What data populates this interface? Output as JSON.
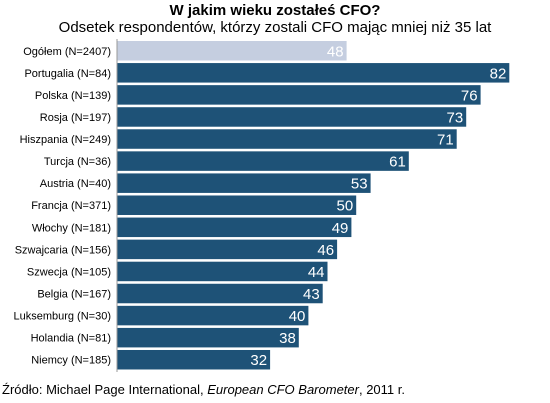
{
  "chart_data": {
    "type": "bar",
    "orientation": "horizontal",
    "title": "W jakim wieku zostałeś CFO?",
    "subtitle": "Odsetek respondentów, którzy zostali CFO mając mniej niż 35 lat",
    "categories": [
      "Ogółem (N=2407)",
      "Portugalia (N=84)",
      "Polska (N=139)",
      "Rosja (N=197)",
      "Hiszpania (N=249)",
      "Turcja (N=36)",
      "Austria (N=40)",
      "Francja (N=371)",
      "Włochy (N=181)",
      "Szwajcaria (N=156)",
      "Szwecja (N=105)",
      "Belgia (N=167)",
      "Luksemburg (N=30)",
      "Holandia (N=81)",
      "Niemcy (N=185)"
    ],
    "values": [
      48,
      82,
      76,
      73,
      71,
      61,
      53,
      50,
      49,
      46,
      44,
      43,
      40,
      38,
      32
    ],
    "highlight_index": 0,
    "xlim": [
      0,
      88
    ],
    "grid": false,
    "colors": {
      "bar": "#1e5277",
      "highlight_bar": "#c5cee0",
      "value_label": "#ffffff",
      "category_label": "#000000"
    }
  },
  "source": {
    "prefix": "Źródło: Michael Page International, ",
    "italic": "European CFO Barometer",
    "suffix": ", 2011 r."
  }
}
